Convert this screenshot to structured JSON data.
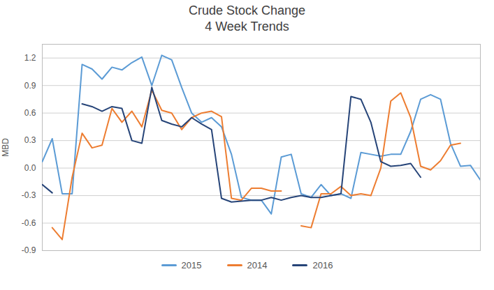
{
  "chart_data": {
    "type": "line",
    "title": "Crude Stock Change\n4 Week Trends",
    "y_label": "MBD",
    "x": [
      0,
      1,
      2,
      3,
      4,
      5,
      6,
      7,
      8,
      9,
      10,
      11,
      12,
      13,
      14,
      15,
      16,
      17,
      18,
      19,
      20,
      21,
      22,
      23,
      24,
      25,
      26,
      27,
      28,
      29,
      30,
      31,
      32,
      33,
      34,
      35,
      36,
      37,
      38,
      39,
      40,
      41,
      42,
      43,
      44
    ],
    "xlim": [
      0,
      44
    ],
    "ylim": [
      -0.9,
      1.35
    ],
    "yticks": [
      -0.9,
      -0.6,
      -0.3,
      {
        "value": 0,
        "label": "0.0"
      },
      0.3,
      0.6,
      0.9,
      1.2
    ],
    "grid": true,
    "tick_labels": "y",
    "series": [
      {
        "name": "2015",
        "color": "#5B9BD5",
        "values": [
          0.07,
          0.32,
          -0.28,
          -0.28,
          1.13,
          1.08,
          0.97,
          1.1,
          1.07,
          1.15,
          1.21,
          0.9,
          1.23,
          1.18,
          0.88,
          0.6,
          0.5,
          0.55,
          0.45,
          0.15,
          -0.32,
          -0.35,
          -0.35,
          -0.5,
          0.12,
          0.15,
          -0.28,
          -0.32,
          -0.18,
          -0.3,
          -0.28,
          -0.33,
          0.17,
          0.15,
          0.13,
          0.15,
          0.15,
          0.4,
          0.75,
          0.8,
          0.75,
          0.27,
          0.02,
          0.03,
          -0.13
        ]
      },
      {
        "name": "2014",
        "color": "#ED7D31",
        "values": [
          null,
          -0.65,
          -0.78,
          -0.1,
          0.38,
          0.22,
          0.25,
          0.65,
          0.5,
          0.62,
          0.45,
          0.85,
          0.63,
          0.6,
          0.42,
          0.55,
          0.6,
          0.62,
          0.56,
          -0.33,
          -0.35,
          -0.22,
          -0.22,
          -0.25,
          -0.25,
          null,
          -0.63,
          -0.65,
          -0.28,
          -0.28,
          -0.2,
          -0.3,
          -0.28,
          -0.3,
          0.0,
          0.73,
          0.82,
          0.55,
          0.02,
          -0.02,
          0.08,
          0.25,
          0.27,
          null,
          null
        ]
      },
      {
        "name": "2016",
        "color": "#264478",
        "values": [
          -0.18,
          -0.27,
          null,
          null,
          0.7,
          0.67,
          0.62,
          0.67,
          0.65,
          0.3,
          0.27,
          0.88,
          0.52,
          0.48,
          0.45,
          0.55,
          0.48,
          0.42,
          -0.33,
          -0.37,
          -0.36,
          -0.35,
          -0.35,
          -0.32,
          -0.35,
          -0.32,
          -0.3,
          -0.32,
          -0.32,
          -0.3,
          -0.28,
          0.78,
          0.75,
          0.5,
          0.07,
          0.02,
          0.03,
          0.05,
          -0.1,
          null,
          null,
          null,
          null,
          null,
          null
        ]
      }
    ]
  }
}
